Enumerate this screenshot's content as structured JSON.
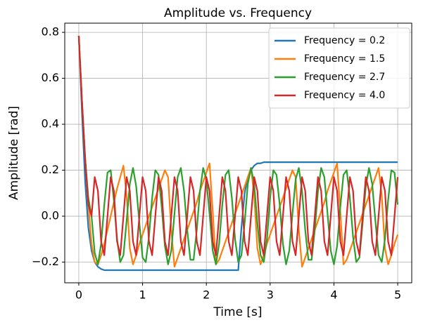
{
  "chart_data": {
    "type": "line",
    "title": "Amplitude vs. Frequency",
    "x_label": "Time [s]",
    "y_label": "Amplitude [rad]",
    "x": [
      0,
      0.05,
      0.1,
      0.15,
      0.2,
      0.25,
      0.3,
      0.35,
      0.4,
      0.45,
      0.5,
      0.55,
      0.6,
      0.65,
      0.7,
      0.75,
      0.8,
      0.85,
      0.9,
      0.95,
      1,
      1.05,
      1.1,
      1.15,
      1.2,
      1.25,
      1.3,
      1.35,
      1.4,
      1.45,
      1.5,
      1.55,
      1.6,
      1.65,
      1.7,
      1.75,
      1.8,
      1.85,
      1.9,
      1.95,
      2,
      2.05,
      2.1,
      2.15,
      2.2,
      2.25,
      2.3,
      2.35,
      2.4,
      2.45,
      2.5,
      2.55,
      2.6,
      2.65,
      2.7,
      2.75,
      2.8,
      2.85,
      2.9,
      2.95,
      3,
      3.05,
      3.1,
      3.15,
      3.2,
      3.25,
      3.3,
      3.35,
      3.4,
      3.45,
      3.5,
      3.55,
      3.6,
      3.65,
      3.7,
      3.75,
      3.8,
      3.85,
      3.9,
      3.95,
      4,
      4.05,
      4.1,
      4.15,
      4.2,
      4.25,
      4.3,
      4.35,
      4.4,
      4.45,
      4.5,
      4.55,
      4.6,
      4.65,
      4.7,
      4.75,
      4.8,
      4.85,
      4.9,
      4.95,
      5
    ],
    "series": [
      {
        "name": "Frequency = 0.2",
        "color": "#1f77b4",
        "values": [
          0.785,
          0.45,
          0.15,
          -0.05,
          -0.15,
          -0.2,
          -0.22,
          -0.23,
          -0.235,
          -0.235,
          -0.235,
          -0.235,
          -0.235,
          -0.235,
          -0.235,
          -0.235,
          -0.235,
          -0.235,
          -0.235,
          -0.235,
          -0.235,
          -0.235,
          -0.235,
          -0.235,
          -0.235,
          -0.235,
          -0.235,
          -0.235,
          -0.235,
          -0.235,
          -0.235,
          -0.235,
          -0.235,
          -0.235,
          -0.235,
          -0.235,
          -0.235,
          -0.235,
          -0.235,
          -0.235,
          -0.235,
          -0.235,
          -0.235,
          -0.235,
          -0.235,
          -0.235,
          -0.235,
          -0.235,
          -0.235,
          -0.235,
          -0.235,
          -0.05,
          0.1,
          0.17,
          0.2,
          0.22,
          0.23,
          0.23,
          0.235,
          0.235,
          0.235,
          0.235,
          0.235,
          0.235,
          0.235,
          0.235,
          0.235,
          0.235,
          0.235,
          0.235,
          0.235,
          0.235,
          0.235,
          0.235,
          0.235,
          0.235,
          0.235,
          0.235,
          0.235,
          0.235,
          0.235,
          0.235,
          0.235,
          0.235,
          0.235,
          0.235,
          0.235,
          0.235,
          0.235,
          0.235,
          0.235,
          0.235,
          0.235,
          0.235,
          0.235,
          0.235,
          0.235,
          0.235,
          0.235,
          0.235,
          0.235
        ]
      },
      {
        "name": "Frequency = 1.5",
        "color": "#ff7f0e",
        "values": [
          0.785,
          0.5,
          0.25,
          0.05,
          -0.12,
          -0.2,
          -0.21,
          -0.17,
          -0.12,
          -0.06,
          0,
          0.06,
          0.12,
          0.17,
          0.22,
          0.09,
          -0.14,
          -0.21,
          -0.17,
          -0.12,
          -0.08,
          -0.04,
          0,
          0.04,
          0.08,
          0.12,
          0.16,
          0.2,
          0.17,
          -0.06,
          -0.22,
          -0.18,
          -0.14,
          -0.1,
          -0.06,
          -0.02,
          0.02,
          0.06,
          0.11,
          0.15,
          0.19,
          0.23,
          0.02,
          -0.21,
          -0.19,
          -0.15,
          -0.11,
          -0.07,
          -0.03,
          0.01,
          0.05,
          0.09,
          0.13,
          0.17,
          0.21,
          0.09,
          -0.14,
          -0.21,
          -0.17,
          -0.12,
          -0.08,
          -0.04,
          0,
          0.04,
          0.08,
          0.12,
          0.16,
          0.2,
          0.17,
          -0.06,
          -0.22,
          -0.18,
          -0.14,
          -0.1,
          -0.06,
          -0.02,
          0.02,
          0.06,
          0.11,
          0.15,
          0.19,
          0.23,
          0.02,
          -0.21,
          -0.19,
          -0.15,
          -0.11,
          -0.07,
          -0.03,
          0.01,
          0.05,
          0.09,
          0.13,
          0.17,
          0.21,
          0.09,
          -0.14,
          -0.21,
          -0.17,
          -0.12,
          -0.08
        ]
      },
      {
        "name": "Frequency = 2.7",
        "color": "#2ca02c",
        "values": [
          0.785,
          0.5,
          0.25,
          0.08,
          0,
          -0.16,
          -0.21,
          -0.12,
          0.05,
          0.19,
          0.2,
          0.07,
          -0.1,
          -0.2,
          -0.17,
          -0.02,
          0.14,
          0.21,
          0.13,
          -0.03,
          -0.18,
          -0.2,
          -0.09,
          0.08,
          0.2,
          0.18,
          0.04,
          -0.13,
          -0.21,
          -0.15,
          0.01,
          0.17,
          0.21,
          0.11,
          -0.06,
          -0.19,
          -0.19,
          -0.06,
          0.11,
          0.21,
          0.16,
          0.01,
          -0.15,
          -0.21,
          -0.12,
          0.05,
          0.18,
          0.2,
          0.08,
          -0.1,
          -0.2,
          -0.17,
          -0.03,
          0.14,
          0.21,
          0.14,
          -0.03,
          -0.17,
          -0.2,
          -0.1,
          0.08,
          0.2,
          0.18,
          0.05,
          -0.12,
          -0.21,
          -0.15,
          0.01,
          0.16,
          0.21,
          0.11,
          -0.06,
          -0.19,
          -0.19,
          -0.06,
          0.11,
          0.21,
          0.17,
          0.01,
          -0.15,
          -0.21,
          -0.13,
          0.04,
          0.18,
          0.2,
          0.08,
          -0.09,
          -0.2,
          -0.18,
          -0.03,
          0.13,
          0.21,
          0.14,
          -0.02,
          -0.17,
          -0.2,
          -0.1,
          0.07,
          0.2,
          0.19,
          0.05
        ]
      },
      {
        "name": "Frequency = 4.0",
        "color": "#d62728",
        "values": [
          0.785,
          0.5,
          0.25,
          0.05,
          0,
          0.17,
          0.11,
          -0.11,
          -0.17,
          0,
          0.17,
          0.11,
          -0.11,
          -0.17,
          0,
          0.17,
          0.11,
          -0.11,
          -0.17,
          0,
          0.17,
          0.11,
          -0.11,
          -0.17,
          0,
          0.17,
          0.11,
          -0.11,
          -0.17,
          0,
          0.17,
          0.11,
          -0.11,
          -0.17,
          0,
          0.17,
          0.11,
          -0.11,
          -0.17,
          0,
          0.17,
          0.11,
          -0.11,
          -0.17,
          0,
          0.17,
          0.11,
          -0.11,
          -0.17,
          0,
          0.17,
          0.11,
          -0.11,
          -0.17,
          0,
          0.17,
          0.11,
          -0.11,
          -0.17,
          0,
          0.17,
          0.11,
          -0.11,
          -0.17,
          0,
          0.17,
          0.11,
          -0.11,
          -0.17,
          0,
          0.17,
          0.11,
          -0.11,
          -0.17,
          0,
          0.17,
          0.11,
          -0.11,
          -0.17,
          0,
          0.17,
          0.11,
          -0.11,
          -0.17,
          0,
          0.17,
          0.11,
          -0.11,
          -0.17,
          0,
          0.17,
          0.11,
          -0.11,
          -0.17,
          0,
          0.17,
          0.11,
          -0.11,
          -0.17,
          0,
          0.17
        ]
      }
    ],
    "xlim": [
      -0.22,
      5.22
    ],
    "ylim": [
      -0.29,
      0.84
    ],
    "xticks": [
      0,
      1,
      2,
      3,
      4,
      5
    ],
    "yticks": [
      {
        "value": -0.2,
        "label": "−0.2"
      },
      {
        "value": 0,
        "label": "0.0"
      },
      0.2,
      0.4,
      0.6,
      0.8
    ],
    "grid": true,
    "legend": "upper-right"
  }
}
